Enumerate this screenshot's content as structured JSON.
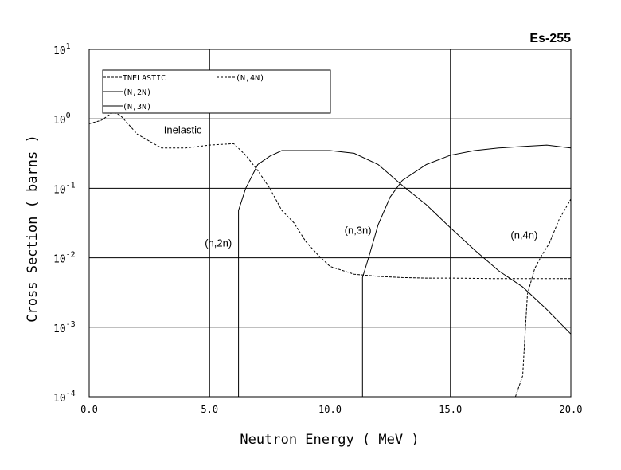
{
  "chart_data": {
    "type": "line",
    "title": "Es-255",
    "xlabel": "Neutron Energy ( MeV )",
    "ylabel": "Cross Section ( barns )",
    "xlim": [
      0,
      20
    ],
    "ylim": [
      0.0001,
      10
    ],
    "yscale": "log",
    "grid": true,
    "legend_placement": "top-left",
    "x_ticks": [
      "0.0",
      "5.0",
      "10.0",
      "15.0",
      "20.0"
    ],
    "y_ticks": [
      {
        "base": "10",
        "exp": "1"
      },
      {
        "base": "10",
        "exp": "0"
      },
      {
        "base": "10",
        "exp": "-1"
      },
      {
        "base": "10",
        "exp": "-2"
      },
      {
        "base": "10",
        "exp": "-3"
      },
      {
        "base": "10",
        "exp": "-4"
      }
    ],
    "legend": [
      {
        "label": "INELASTIC",
        "style": "dashed"
      },
      {
        "label": "(N,4N)",
        "style": "dashed"
      },
      {
        "label": "(N,2N)",
        "style": "solid"
      },
      {
        "label": "(N,3N)",
        "style": "solid"
      }
    ],
    "annotations": [
      {
        "text": "Inelastic",
        "x": 3.1,
        "y": 0.62
      },
      {
        "text": "(n,2n)",
        "x": 4.8,
        "y": 0.0145
      },
      {
        "text": "(n,3n)",
        "x": 10.6,
        "y": 0.022
      },
      {
        "text": "(n,4n)",
        "x": 17.5,
        "y": 0.019
      }
    ],
    "series": [
      {
        "name": "INELASTIC",
        "style": "dashed",
        "points": [
          [
            0.0,
            0.85
          ],
          [
            0.5,
            0.95
          ],
          [
            1.0,
            1.25
          ],
          [
            1.3,
            1.12
          ],
          [
            2.0,
            0.6
          ],
          [
            3.0,
            0.38
          ],
          [
            4.0,
            0.38
          ],
          [
            5.0,
            0.42
          ],
          [
            5.5,
            0.43
          ],
          [
            6.0,
            0.44
          ],
          [
            6.5,
            0.3
          ],
          [
            7.0,
            0.18
          ],
          [
            7.5,
            0.1
          ],
          [
            8.0,
            0.048
          ],
          [
            8.5,
            0.032
          ],
          [
            9.0,
            0.017
          ],
          [
            9.5,
            0.011
          ],
          [
            10.0,
            0.0075
          ],
          [
            11.0,
            0.0058
          ],
          [
            12.0,
            0.0054
          ],
          [
            13.0,
            0.0052
          ],
          [
            14.0,
            0.0051
          ],
          [
            15.0,
            0.0051
          ],
          [
            17.0,
            0.005
          ],
          [
            20.0,
            0.005
          ]
        ]
      },
      {
        "name": "(N,2N)",
        "style": "solid",
        "points": [
          [
            6.2,
            0.0001
          ],
          [
            6.2,
            0.048
          ],
          [
            6.5,
            0.1
          ],
          [
            7.0,
            0.22
          ],
          [
            7.5,
            0.29
          ],
          [
            8.0,
            0.35
          ],
          [
            9.0,
            0.35
          ],
          [
            10.0,
            0.35
          ],
          [
            11.0,
            0.32
          ],
          [
            12.0,
            0.22
          ],
          [
            13.0,
            0.11
          ],
          [
            14.0,
            0.058
          ],
          [
            15.0,
            0.027
          ],
          [
            16.0,
            0.013
          ],
          [
            17.0,
            0.0065
          ],
          [
            18.0,
            0.0038
          ],
          [
            19.0,
            0.0018
          ],
          [
            20.0,
            0.0008
          ]
        ]
      },
      {
        "name": "(N,3N)",
        "style": "solid",
        "points": [
          [
            11.35,
            0.0001
          ],
          [
            11.35,
            0.0052
          ],
          [
            11.6,
            0.01
          ],
          [
            12.0,
            0.03
          ],
          [
            12.5,
            0.075
          ],
          [
            13.0,
            0.13
          ],
          [
            14.0,
            0.22
          ],
          [
            15.0,
            0.3
          ],
          [
            16.0,
            0.35
          ],
          [
            17.0,
            0.38
          ],
          [
            18.0,
            0.4
          ],
          [
            19.0,
            0.42
          ],
          [
            20.0,
            0.38
          ]
        ]
      },
      {
        "name": "(N,4N)",
        "style": "dashed",
        "points": [
          [
            17.7,
            0.0001
          ],
          [
            18.0,
            0.0002
          ],
          [
            18.1,
            0.0008
          ],
          [
            18.2,
            0.003
          ],
          [
            18.5,
            0.007
          ],
          [
            18.8,
            0.011
          ],
          [
            19.1,
            0.016
          ],
          [
            19.5,
            0.035
          ],
          [
            20.0,
            0.07
          ]
        ]
      }
    ]
  }
}
